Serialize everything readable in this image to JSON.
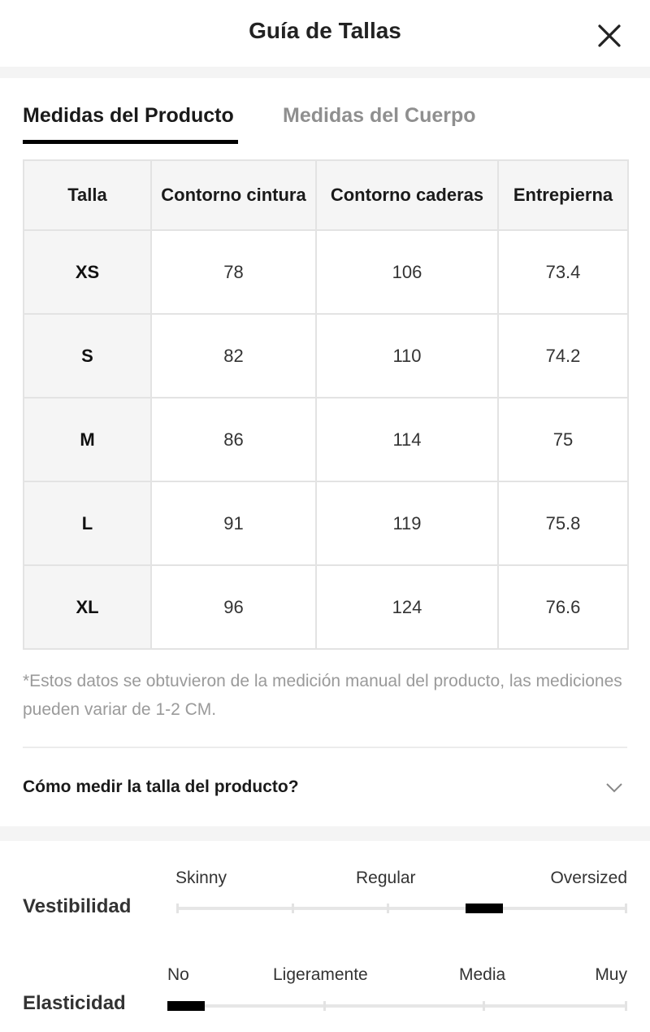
{
  "header": {
    "title": "Guía de Tallas"
  },
  "tabs": [
    {
      "label": "Medidas del Producto",
      "active": true
    },
    {
      "label": "Medidas del Cuerpo",
      "active": false
    }
  ],
  "table": {
    "headers": [
      "Talla",
      "Contorno cintura",
      "Contorno caderas",
      "Entrepierna"
    ],
    "rows": [
      [
        "XS",
        "78",
        "106",
        "73.4"
      ],
      [
        "S",
        "82",
        "110",
        "74.2"
      ],
      [
        "M",
        "86",
        "114",
        "75"
      ],
      [
        "L",
        "91",
        "119",
        "75.8"
      ],
      [
        "XL",
        "96",
        "124",
        "76.6"
      ]
    ]
  },
  "note": "*Estos datos se obtuvieron de la medición manual del producto, las mediciones pueden variar de 1-2 CM.",
  "howto": {
    "label": "Cómo medir la talla del producto?"
  },
  "fit": {
    "label": "Vestibilidad",
    "options": [
      "Skinny",
      "Regular",
      "Oversized"
    ],
    "level": 0.7
  },
  "elasticity": {
    "label": "Elasticidad",
    "options": [
      "No",
      "Ligeramente",
      "Media",
      "Muy"
    ],
    "level": 0.0
  },
  "colors": {
    "accent": "#000000",
    "muted_text": "#9a9a9a",
    "band": "#f4f4f4"
  },
  "icons": {
    "close": "close-icon",
    "expand": "chevron-down-icon"
  }
}
